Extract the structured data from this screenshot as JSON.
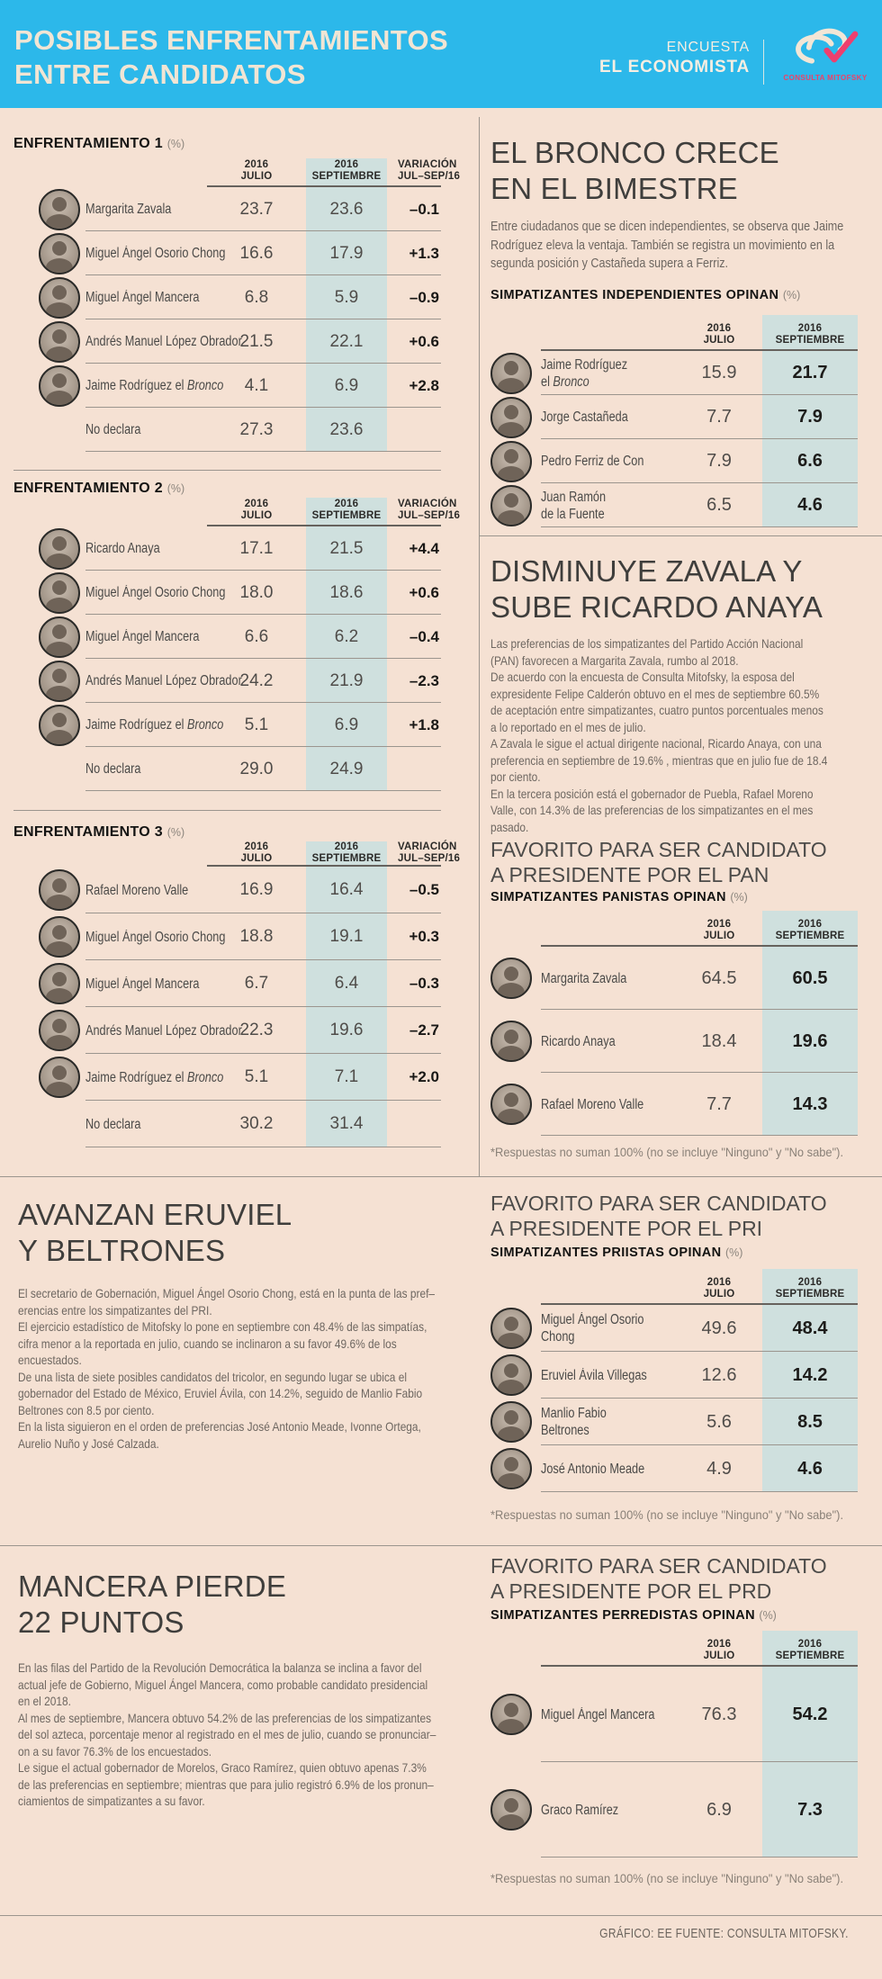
{
  "header": {
    "title_line1": "POSIBLES ENFRENTAMIENTOS",
    "title_line2": "ENTRE CANDIDATOS",
    "brand_line1": "ENCUESTA",
    "brand_line2": "EL ECONOMISTA",
    "logo_text": "CONSULTA MITOFSKY"
  },
  "colors": {
    "header_bg": "#2cb8ea",
    "page_bg": "#f5e1d3",
    "highlight_column": "#cfe0de",
    "logo_pink": "#ef4066"
  },
  "labels": {
    "y2016": "2016",
    "julio": "JULIO",
    "septiembre": "SEPTIEMBRE",
    "variacion1": "VARIACIÓN",
    "variacion2": "JUL–SEP/16",
    "pct": "(%)",
    "footnote": "*Respuestas no suman 100% (no se incluye \"Ninguno\" y \"No sabe\")."
  },
  "left_tables": [
    {
      "title": "ENFRENTAMIENTO 1",
      "rows": [
        {
          "photo": true,
          "name": "Margarita Zavala",
          "julio": "23.7",
          "septiembre": "23.6",
          "variacion": "–0.1"
        },
        {
          "photo": true,
          "name": "Miguel Ángel Osorio Chong",
          "julio": "16.6",
          "septiembre": "17.9",
          "variacion": "+1.3"
        },
        {
          "photo": true,
          "name": "Miguel Ángel Mancera",
          "julio": "6.8",
          "septiembre": "5.9",
          "variacion": "–0.9"
        },
        {
          "photo": true,
          "name": "Andrés Manuel López Obrador",
          "julio": "21.5",
          "septiembre": "22.1",
          "variacion": "+0.6"
        },
        {
          "photo": true,
          "name": "Jaime Rodríguez el *Bronco*",
          "julio": "4.1",
          "septiembre": "6.9",
          "variacion": "+2.8"
        },
        {
          "photo": false,
          "name": "No declara",
          "julio": "27.3",
          "septiembre": "23.6",
          "variacion": ""
        }
      ]
    },
    {
      "title": "ENFRENTAMIENTO 2",
      "rows": [
        {
          "photo": true,
          "name": "Ricardo Anaya",
          "julio": "17.1",
          "septiembre": "21.5",
          "variacion": "+4.4"
        },
        {
          "photo": true,
          "name": "Miguel Ángel Osorio Chong",
          "julio": "18.0",
          "septiembre": "18.6",
          "variacion": "+0.6"
        },
        {
          "photo": true,
          "name": "Miguel Ángel Mancera",
          "julio": "6.6",
          "septiembre": "6.2",
          "variacion": "–0.4"
        },
        {
          "photo": true,
          "name": "Andrés Manuel López Obrador",
          "julio": "24.2",
          "septiembre": "21.9",
          "variacion": "–2.3"
        },
        {
          "photo": true,
          "name": "Jaime Rodríguez el *Bronco*",
          "julio": "5.1",
          "septiembre": "6.9",
          "variacion": "+1.8"
        },
        {
          "photo": false,
          "name": "No declara",
          "julio": "29.0",
          "septiembre": "24.9",
          "variacion": ""
        }
      ]
    },
    {
      "title": "ENFRENTAMIENTO 3",
      "rows": [
        {
          "photo": true,
          "name": "Rafael Moreno Valle",
          "julio": "16.9",
          "septiembre": "16.4",
          "variacion": "–0.5"
        },
        {
          "photo": true,
          "name": "Miguel Ángel Osorio Chong",
          "julio": "18.8",
          "septiembre": "19.1",
          "variacion": "+0.3"
        },
        {
          "photo": true,
          "name": "Miguel Ángel Mancera",
          "julio": "6.7",
          "septiembre": "6.4",
          "variacion": "–0.3"
        },
        {
          "photo": true,
          "name": "Andrés Manuel López Obrador",
          "julio": "22.3",
          "septiembre": "19.6",
          "variacion": "–2.7"
        },
        {
          "photo": true,
          "name": "Jaime Rodríguez el *Bronco*",
          "julio": "5.1",
          "septiembre": "7.1",
          "variacion": "+2.0"
        },
        {
          "photo": false,
          "name": "No declara",
          "julio": "30.2",
          "septiembre": "31.4",
          "variacion": ""
        }
      ]
    }
  ],
  "sections": {
    "bronco": {
      "heading1": "EL BRONCO CRECE",
      "heading2": "EN EL BIMESTRE",
      "body": "Entre ciudadanos que se dicen independientes, se observa que Jaime\nRodríguez eleva la ventaja. También se registra un movimiento en la\nsegunda posición y Castañeda supera a Ferriz.",
      "table_title": "SIMPATIZANTES INDEPENDIENTES OPINAN",
      "rows": [
        {
          "photo": true,
          "name": "Jaime Rodríguez\nel *Bronco*",
          "julio": "15.9",
          "septiembre": "21.7"
        },
        {
          "photo": true,
          "name": "Jorge Castañeda",
          "julio": "7.7",
          "septiembre": "7.9"
        },
        {
          "photo": true,
          "name": "Pedro Ferriz de Con",
          "julio": "7.9",
          "septiembre": "6.6"
        },
        {
          "photo": true,
          "name": "Juan Ramón\nde la Fuente",
          "julio": "6.5",
          "septiembre": "4.6"
        }
      ]
    },
    "zavala": {
      "heading1": "DISMINUYE ZAVALA Y",
      "heading2": "SUBE RICARDO ANAYA",
      "body": "Las preferencias de los simpatizantes del Partido Acción Nacional\n(PAN) favorecen a Margarita Zavala, rumbo al 2018.\nDe acuerdo con la encuesta de Consulta Mitofsky, la esposa del\nexpresidente Felipe Calderón obtuvo en el mes de septiembre 60.5%\nde aceptación entre simpatizantes, cuatro puntos porcentuales menos\na lo reportado en el mes de julio.\nA Zavala le sigue el actual dirigente nacional, Ricardo Anaya, con una\npreferencia en septiembre de 19.6% , mientras que en julio fue de 18.4\npor ciento.\nEn la tercera posición está el gobernador de Puebla, Rafael Moreno\nValle, con 14.3% de las preferencias de los simpatizantes en el mes\npasado.",
      "favorito1": "FAVORITO PARA SER CANDIDATO",
      "favorito2": "A PRESIDENTE POR EL PAN",
      "table_title": "SIMPATIZANTES PANISTAS OPINAN",
      "rows": [
        {
          "photo": true,
          "name": "Margarita Zavala",
          "julio": "64.5",
          "septiembre": "60.5"
        },
        {
          "photo": true,
          "name": "Ricardo Anaya",
          "julio": "18.4",
          "septiembre": "19.6"
        },
        {
          "photo": true,
          "name": "Rafael Moreno Valle",
          "julio": "7.7",
          "septiembre": "14.3"
        }
      ]
    },
    "eruviel": {
      "heading1": "AVANZAN ERUVIEL",
      "heading2": "Y BELTRONES",
      "body": "El secretario de Gobernación, Miguel Ángel Osorio Chong, está en la punta de las pref–\nerencias entre los simpatizantes del PRI.\nEl ejercicio estadístico de Mitofsky lo pone en septiembre con 48.4% de las simpatías,\ncifra menor a la reportada en julio, cuando se inclinaron a su favor 49.6% de los\nencuestados.\nDe una lista de siete posibles candidatos del tricolor, en segundo lugar se ubica el\ngobernador del Estado de México, Eruviel Ávila, con 14.2%, seguido de Manlio Fabio\nBeltrones con 8.5 por ciento.\nEn la lista siguieron en el orden de preferencias José Antonio Meade, Ivonne Ortega,\nAurelio Nuño y José Calzada.",
      "favorito1": "FAVORITO PARA SER CANDIDATO",
      "favorito2": "A PRESIDENTE POR EL PRI",
      "table_title": "SIMPATIZANTES PRIISTAS OPINAN",
      "rows": [
        {
          "photo": true,
          "name": "Miguel Ángel Osorio\nChong",
          "julio": "49.6",
          "septiembre": "48.4"
        },
        {
          "photo": true,
          "name": "Eruviel Ávila Villegas",
          "julio": "12.6",
          "septiembre": "14.2"
        },
        {
          "photo": true,
          "name": "Manlio Fabio\nBeltrones",
          "julio": "5.6",
          "septiembre": "8.5"
        },
        {
          "photo": true,
          "name": "José Antonio Meade",
          "julio": "4.9",
          "septiembre": "4.6"
        }
      ]
    },
    "mancera": {
      "heading1": "MANCERA PIERDE",
      "heading2": "22 PUNTOS",
      "body": "En las filas del Partido de la Revolución Democrática la balanza se inclina a favor del\nactual jefe de Gobierno, Miguel Ángel Mancera, como probable candidato presidencial\nen el 2018.\nAl mes de septiembre, Mancera obtuvo 54.2% de las preferencias de los simpatizantes\ndel sol azteca, porcentaje menor al registrado en el mes de julio, cuando se pronunciar–\non a su favor 76.3% de los encuestados.\nLe sigue el actual gobernador de Morelos, Graco Ramírez, quien obtuvo apenas  7.3%\nde las preferencias en septiembre; mientras que para julio registró 6.9% de los pronun–\nciamientos de simpatizantes a su favor.",
      "favorito1": "FAVORITO PARA SER CANDIDATO",
      "favorito2": "A PRESIDENTE POR EL PRD",
      "table_title": "SIMPATIZANTES PERREDISTAS OPINAN",
      "rows": [
        {
          "photo": true,
          "name": "Miguel Ángel Mancera",
          "julio": "76.3",
          "septiembre": "54.2"
        },
        {
          "photo": true,
          "name": "Graco Ramírez",
          "julio": "6.9",
          "septiembre": "7.3"
        }
      ]
    }
  },
  "footer": {
    "credit": "GRÁFICO: EE  FUENTE: CONSULTA MITOFSKY."
  }
}
